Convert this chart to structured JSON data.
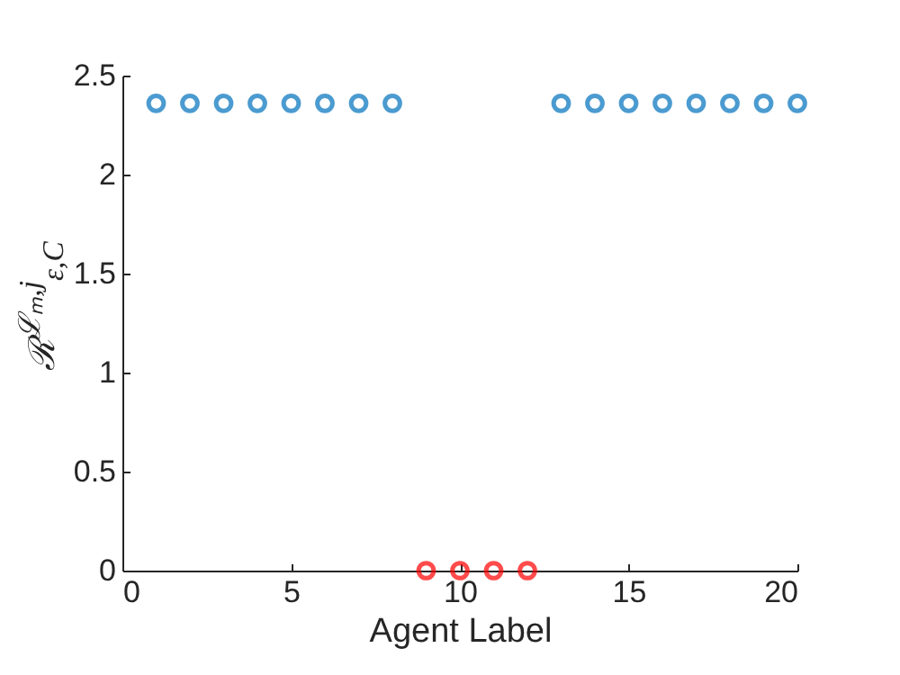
{
  "chart_data": {
    "type": "scatter",
    "xlabel": "Agent Label",
    "ylabel": "ℛ$^{ℒₘ,j}$$_{ε,C}$",
    "x": [
      1,
      2,
      3,
      4,
      5,
      6,
      7,
      8,
      9,
      10,
      11,
      12,
      13,
      14,
      15,
      16,
      17,
      18,
      19,
      20
    ],
    "series": [
      {
        "color": "#0072bd",
        "values": [
          2.36,
          2.36,
          2.36,
          2.36,
          2.36,
          2.36,
          2.36,
          2.36,
          null,
          null,
          null,
          null,
          2.36,
          2.36,
          2.36,
          2.36,
          2.36,
          2.36,
          2.36,
          2.36
        ]
      },
      {
        "color": "#ff0000",
        "values": [
          null,
          null,
          null,
          null,
          null,
          null,
          null,
          null,
          0,
          0,
          0,
          0,
          null,
          null,
          null,
          null,
          null,
          null,
          null,
          null
        ]
      }
    ],
    "xlim": [
      0,
      20
    ],
    "xticks": [
      0,
      5,
      10,
      15,
      20
    ],
    "ylim": [
      0,
      2.5
    ],
    "yticks": [
      0,
      0.5,
      1,
      1.5,
      2,
      2.5
    ],
    "marker": "circle",
    "grid": false
  }
}
